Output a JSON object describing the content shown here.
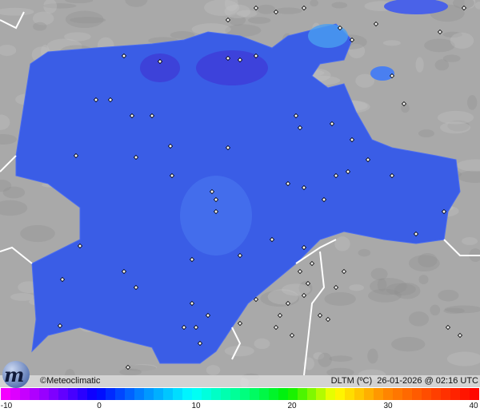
{
  "map": {
    "background_color": "#a8a8a8",
    "region_color": "#3a5de6",
    "station_icon": "diamond-icon"
  },
  "footer": {
    "credit": "©Meteoclimatic",
    "variable": "DLTM (ºC)",
    "timestamp": "26-01-2026 @ 02:16 UTC"
  },
  "legend": {
    "min": -10,
    "max": 40,
    "ticks": [
      "-10",
      "0",
      "10",
      "20",
      "30",
      "40"
    ],
    "tick_values": [
      -10,
      0,
      10,
      20,
      30,
      40
    ]
  }
}
